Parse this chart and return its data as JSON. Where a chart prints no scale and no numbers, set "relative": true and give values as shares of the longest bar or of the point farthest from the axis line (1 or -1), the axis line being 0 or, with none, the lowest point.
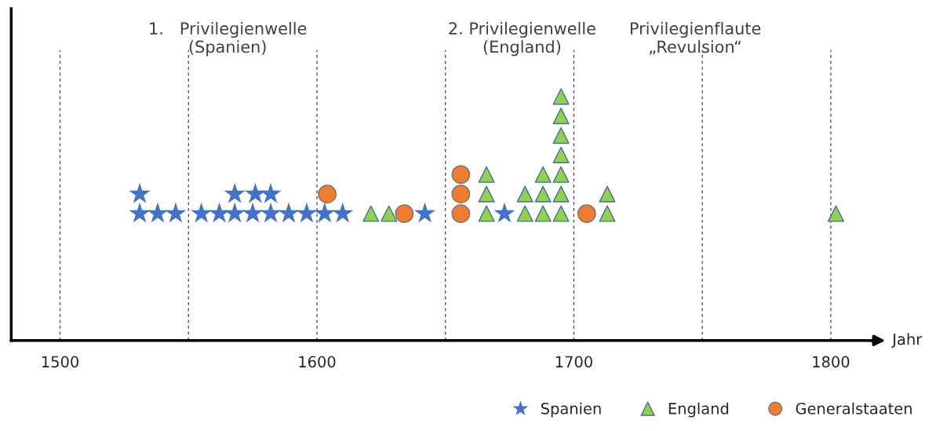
{
  "chart_data": {
    "type": "scatter",
    "relative": true,
    "xlabel": "Jahr",
    "xlim": [
      1481,
      1818
    ],
    "xticks": [
      1500,
      1600,
      1700,
      1800
    ],
    "tick_labels": "x",
    "grid": false,
    "legend": "bottom right",
    "series": [
      {
        "name": "Spanien",
        "color": "#4472c4",
        "marker": "star",
        "x": [
          1531,
          1538,
          1545,
          1555,
          1562,
          1568,
          1575,
          1582,
          1589,
          1596,
          1603,
          1610,
          1642,
          1673,
          1531,
          1568,
          1576,
          1582
        ],
        "values": [
          0.52,
          0.52,
          0.52,
          0.52,
          0.52,
          0.52,
          0.52,
          0.52,
          0.52,
          0.52,
          0.52,
          0.52,
          0.52,
          0.52,
          0.6,
          0.6,
          0.6,
          0.6
        ]
      },
      {
        "name": "England",
        "color": "#92d050",
        "marker": "triangle",
        "x": [
          1621,
          1628,
          1666,
          1666,
          1666,
          1681,
          1681,
          1688,
          1688,
          1688,
          1695,
          1695,
          1695,
          1695,
          1695,
          1695,
          1695,
          1713,
          1713,
          1802
        ],
        "values": [
          0.52,
          0.52,
          0.52,
          0.6,
          0.68,
          0.52,
          0.6,
          0.52,
          0.6,
          0.68,
          0.52,
          0.6,
          0.68,
          0.76,
          0.84,
          0.92,
          1.0,
          0.52,
          0.6,
          0.52
        ]
      },
      {
        "name": "Generalstaaten",
        "color": "#ed7d31",
        "marker": "circle",
        "x": [
          1604,
          1634,
          1656,
          1656,
          1656,
          1705
        ],
        "values": [
          0.6,
          0.52,
          0.52,
          0.6,
          0.68,
          0.52
        ]
      }
    ],
    "ref_lines": [
      {
        "axis": "x",
        "value": 1500,
        "line_style": "dashed"
      },
      {
        "axis": "x",
        "value": 1550,
        "line_style": "dashed"
      },
      {
        "axis": "x",
        "value": 1600,
        "line_style": "dashed"
      },
      {
        "axis": "x",
        "value": 1650,
        "line_style": "dashed"
      },
      {
        "axis": "x",
        "value": 1700,
        "line_style": "dashed"
      },
      {
        "axis": "x",
        "value": 1750,
        "line_style": "dashed"
      },
      {
        "axis": "x",
        "value": 1800,
        "line_style": "dashed"
      }
    ],
    "annotations": [
      "1.   Privilegienwelle\n(Spanien)",
      "2. Privilegienwelle\n(England)",
      "Privilegienflaute\n„Revulsion“"
    ]
  }
}
